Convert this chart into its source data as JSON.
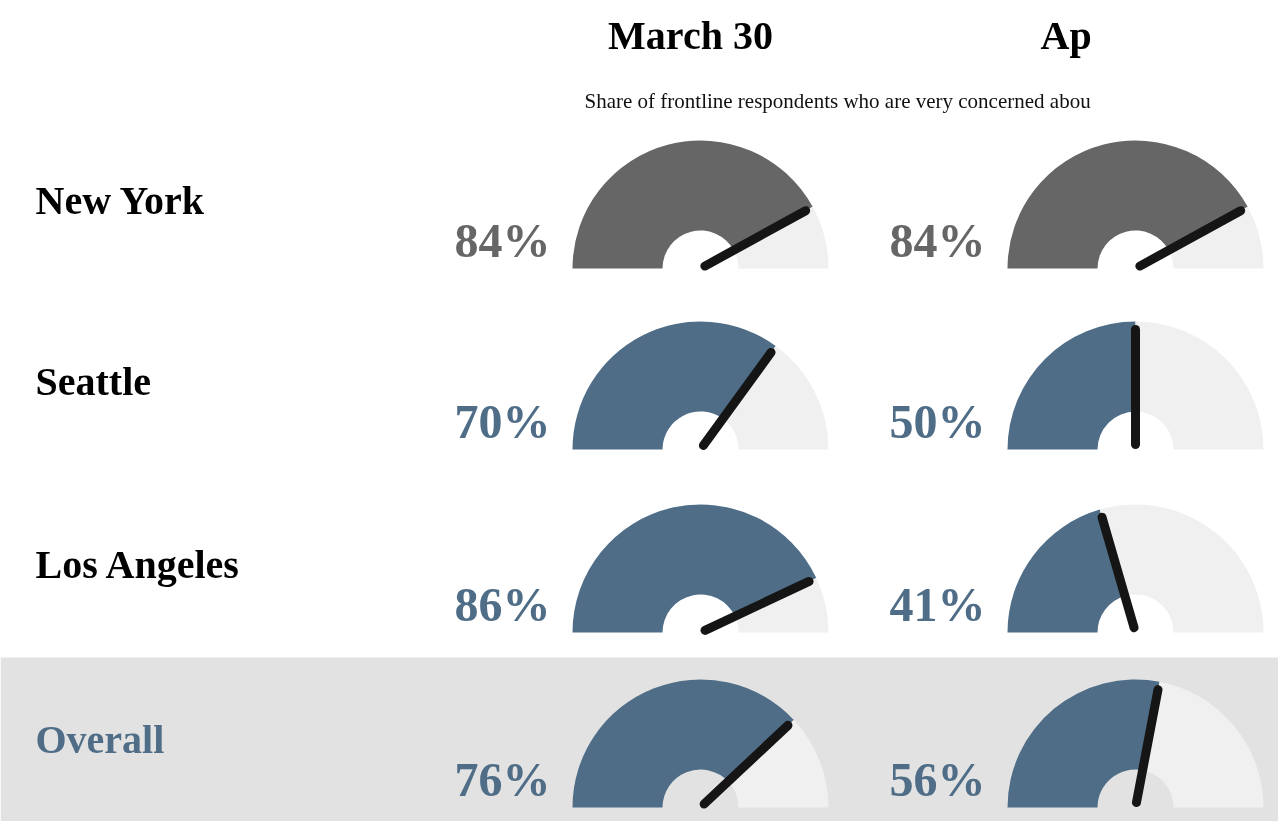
{
  "chart_data": [
    {
      "type": "donut",
      "title": "March 30",
      "subtitle": "Share of frontline respondents who are very concerned abou",
      "ylabel": "New York",
      "categories": [
        null,
        null
      ],
      "values": [
        84,
        16
      ],
      "colors": [
        "#666666",
        "#f0f0f0"
      ],
      "value_labels": [
        "84%",
        null
      ]
    },
    {
      "type": "donut",
      "title": "Ap",
      "categories": [
        null,
        null
      ],
      "values": [
        84,
        16
      ],
      "colors": [
        "#666666",
        "#f0f0f0"
      ],
      "value_labels": [
        "84%",
        null
      ]
    },
    {
      "type": "donut",
      "ylabel": "Seattle",
      "categories": [
        null,
        null
      ],
      "values": [
        70,
        30
      ],
      "colors": [
        "#4f6d87",
        "#f0f0f0"
      ],
      "value_labels": [
        "70%",
        null
      ]
    },
    {
      "type": "donut",
      "categories": [
        null,
        null
      ],
      "values": [
        50,
        50
      ],
      "colors": [
        "#4f6d87",
        "#f0f0f0"
      ],
      "value_labels": [
        "50%",
        null
      ]
    },
    {
      "type": "donut",
      "ylabel": "Los Angeles",
      "categories": [
        null,
        null
      ],
      "values": [
        86,
        14
      ],
      "colors": [
        "#4f6d87",
        "#f0f0f0"
      ],
      "value_labels": [
        "86%",
        null
      ]
    },
    {
      "type": "donut",
      "categories": [
        null,
        null
      ],
      "values": [
        41,
        59
      ],
      "colors": [
        "#4f6d87",
        "#f0f0f0"
      ],
      "value_labels": [
        "41%",
        null
      ]
    },
    {
      "type": "donut",
      "ylabel": "Overall",
      "categories": [
        null,
        null
      ],
      "values": [
        76,
        24
      ],
      "colors": [
        "#4f6d87",
        "#f0f0f0"
      ],
      "value_labels": [
        "76%",
        null
      ]
    },
    {
      "type": "donut",
      "categories": [
        null,
        null
      ],
      "values": [
        56,
        44
      ],
      "colors": [
        "#4f6d87",
        "#f0f0f0"
      ],
      "value_labels": [
        "56%",
        null
      ]
    }
  ]
}
